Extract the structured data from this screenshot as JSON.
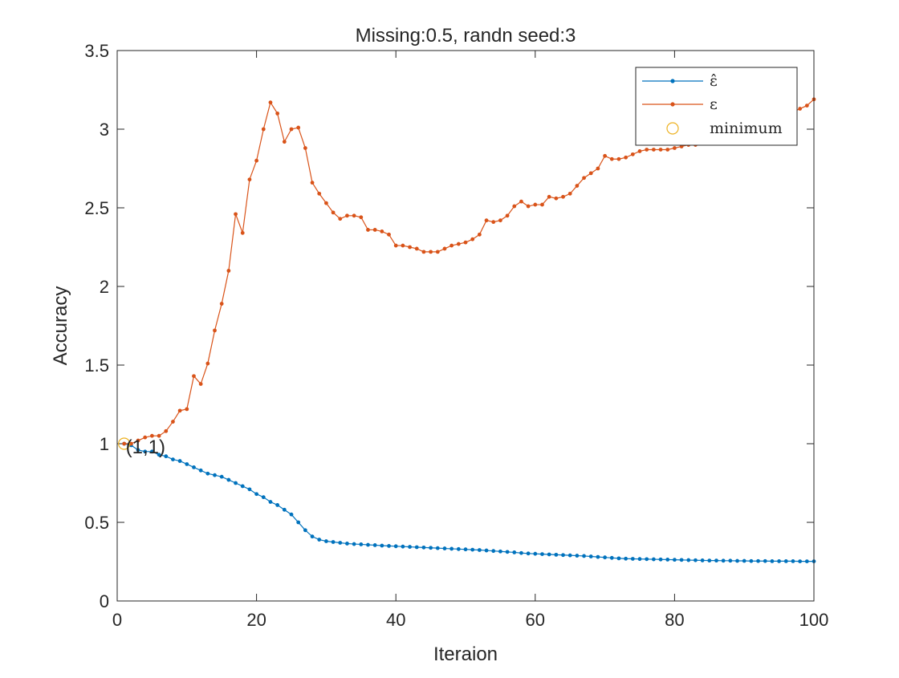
{
  "chart_data": {
    "type": "line",
    "title": "Missing:0.5,  randn seed:3",
    "xlabel": "Iteraion",
    "ylabel": "Accuracy",
    "xlim": [
      0,
      100
    ],
    "ylim": [
      0,
      3.5
    ],
    "xticks": [
      "0",
      "20",
      "40",
      "60",
      "80",
      "100"
    ],
    "yticks": [
      "0",
      "0.5",
      "1",
      "1.5",
      "2",
      "2.5",
      "3",
      "3.5"
    ],
    "grid": false,
    "legend_position": "top-right",
    "x": [
      1,
      2,
      3,
      4,
      5,
      6,
      7,
      8,
      9,
      10,
      11,
      12,
      13,
      14,
      15,
      16,
      17,
      18,
      19,
      20,
      21,
      22,
      23,
      24,
      25,
      26,
      27,
      28,
      29,
      30,
      31,
      32,
      33,
      34,
      35,
      36,
      37,
      38,
      39,
      40,
      41,
      42,
      43,
      44,
      45,
      46,
      47,
      48,
      49,
      50,
      51,
      52,
      53,
      54,
      55,
      56,
      57,
      58,
      59,
      60,
      61,
      62,
      63,
      64,
      65,
      66,
      67,
      68,
      69,
      70,
      71,
      72,
      73,
      74,
      75,
      76,
      77,
      78,
      79,
      80,
      81,
      82,
      83,
      84,
      85,
      86,
      87,
      88,
      89,
      90,
      91,
      92,
      93,
      94,
      95,
      96,
      97,
      98,
      99,
      100
    ],
    "series": [
      {
        "name": "ε̂",
        "color": "#0072BD",
        "values": [
          1.0,
          0.99,
          0.96,
          0.95,
          0.95,
          0.93,
          0.92,
          0.9,
          0.89,
          0.87,
          0.85,
          0.83,
          0.81,
          0.8,
          0.79,
          0.77,
          0.75,
          0.73,
          0.71,
          0.68,
          0.66,
          0.63,
          0.61,
          0.58,
          0.55,
          0.5,
          0.45,
          0.41,
          0.39,
          0.38,
          0.375,
          0.37,
          0.365,
          0.362,
          0.36,
          0.357,
          0.355,
          0.352,
          0.35,
          0.348,
          0.346,
          0.344,
          0.342,
          0.34,
          0.338,
          0.336,
          0.334,
          0.332,
          0.33,
          0.328,
          0.326,
          0.324,
          0.321,
          0.318,
          0.315,
          0.312,
          0.309,
          0.305,
          0.302,
          0.3,
          0.298,
          0.296,
          0.294,
          0.292,
          0.29,
          0.288,
          0.286,
          0.283,
          0.28,
          0.277,
          0.274,
          0.271,
          0.269,
          0.268,
          0.267,
          0.266,
          0.265,
          0.264,
          0.263,
          0.262,
          0.261,
          0.26,
          0.259,
          0.258,
          0.257,
          0.257,
          0.256,
          0.256,
          0.255,
          0.255,
          0.254,
          0.254,
          0.254,
          0.253,
          0.253,
          0.253,
          0.253,
          0.252,
          0.252,
          0.252
        ]
      },
      {
        "name": "ε",
        "color": "#D95319",
        "values": [
          1.0,
          1.0,
          1.02,
          1.04,
          1.05,
          1.05,
          1.08,
          1.14,
          1.21,
          1.22,
          1.43,
          1.38,
          1.51,
          1.72,
          1.89,
          2.1,
          2.46,
          2.34,
          2.68,
          2.8,
          3.0,
          3.17,
          3.1,
          2.92,
          3.0,
          3.01,
          2.88,
          2.66,
          2.59,
          2.53,
          2.47,
          2.43,
          2.45,
          2.45,
          2.44,
          2.36,
          2.36,
          2.35,
          2.33,
          2.26,
          2.26,
          2.25,
          2.24,
          2.22,
          2.22,
          2.22,
          2.24,
          2.26,
          2.27,
          2.28,
          2.3,
          2.33,
          2.42,
          2.41,
          2.42,
          2.45,
          2.51,
          2.54,
          2.51,
          2.52,
          2.52,
          2.57,
          2.56,
          2.57,
          2.59,
          2.64,
          2.69,
          2.72,
          2.75,
          2.83,
          2.81,
          2.81,
          2.82,
          2.84,
          2.86,
          2.87,
          2.87,
          2.87,
          2.87,
          2.88,
          2.89,
          2.9,
          2.9,
          2.92,
          2.93,
          2.94,
          2.96,
          2.98,
          3.0,
          3.01,
          3.02,
          3.04,
          3.05,
          3.06,
          3.08,
          3.09,
          3.11,
          3.13,
          3.15,
          3.19
        ]
      }
    ],
    "minimum_marker": {
      "name": "minimum",
      "color": "#EDB120",
      "x": 1,
      "y": 1,
      "label": "(1,1)"
    }
  }
}
